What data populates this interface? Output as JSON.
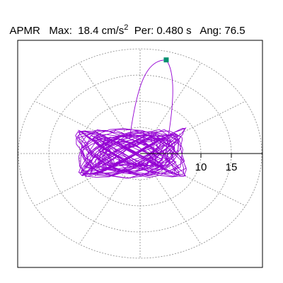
{
  "header": {
    "site": "APMR",
    "max_label": "Max:",
    "max_value": "18.4 cm/s",
    "max_exp": "2",
    "per_label": "Per:",
    "per_value": "0.480 s",
    "ang_label": "Ang:",
    "ang_value": "76.5"
  },
  "chart_data": {
    "type": "polar-scatter",
    "title": "",
    "radial_ticks": [
      10,
      15
    ],
    "radial_max": 20,
    "grid_rings": [
      5,
      10,
      15,
      20
    ],
    "spoke_step_deg": 30,
    "grid": true,
    "series_color": "#9400d3",
    "marker_color": "#009070",
    "max_point": {
      "r": 18.4,
      "angle_deg": 76.5
    }
  }
}
